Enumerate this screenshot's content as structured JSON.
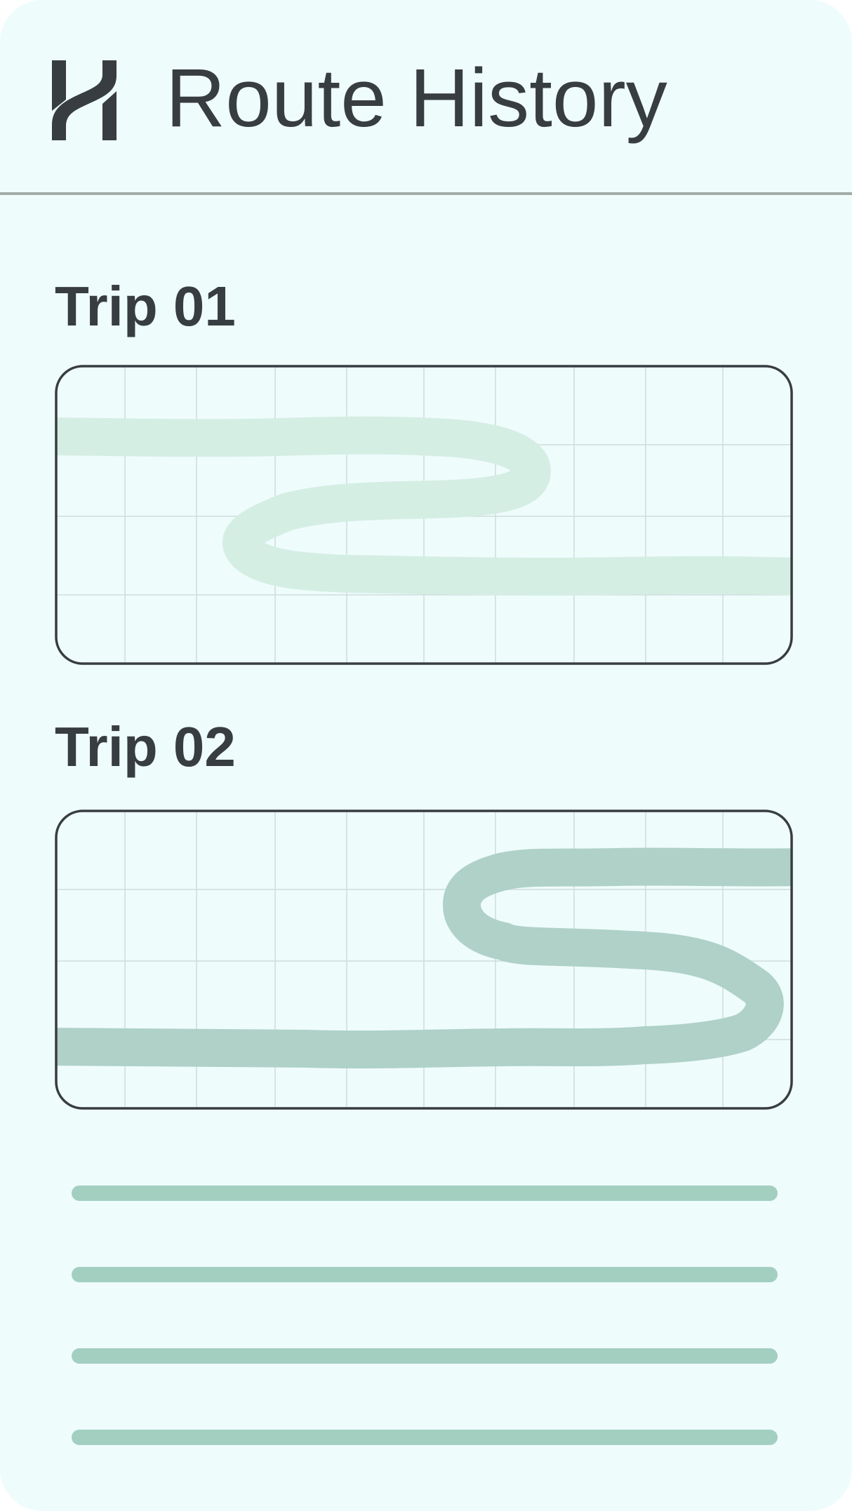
{
  "app": {
    "title": "Route History",
    "logo_icon": "h-monogram-logo-icon"
  },
  "trips": [
    {
      "label": "Trip 01",
      "route_color": "#d5eee4"
    },
    {
      "label": "Trip 02",
      "route_color": "#afd1c7"
    }
  ],
  "colors": {
    "background": "#effcfc",
    "text": "#373d40",
    "divider": "#a3aca8",
    "map_border": "#373d40",
    "map_grid": "#cfdcdc",
    "placeholder_line": "#a3cfc1"
  },
  "placeholder_lines_count": 4
}
